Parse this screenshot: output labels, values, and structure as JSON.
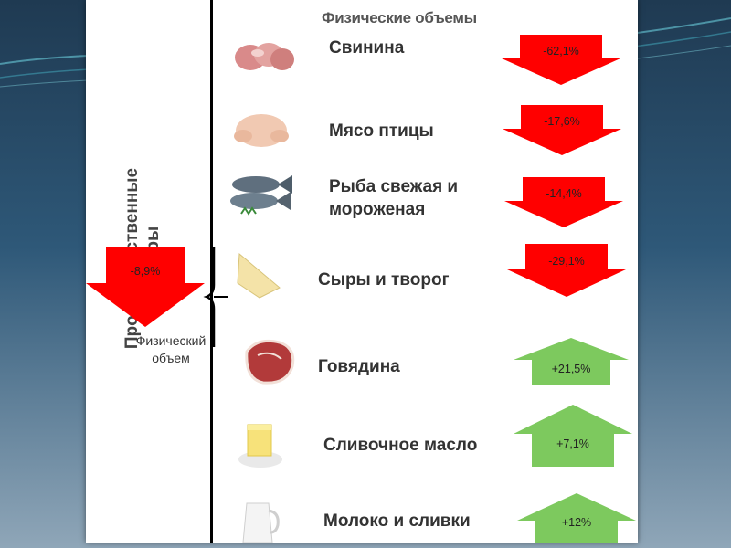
{
  "slide": {
    "header_title": "Физические объемы",
    "vertical_title_line1": "Продовольственные",
    "vertical_title_line2": "товары",
    "overall": {
      "change": "-8,9%",
      "label_line1": "Физический",
      "label_line2": "объем",
      "color": "#ff0000"
    }
  },
  "items": [
    {
      "name_line1": "Свинина",
      "name_line2": "",
      "change": "-62,1%",
      "direction": "down",
      "icon": "pork-meat-icon"
    },
    {
      "name_line1": "Мясо птицы",
      "name_line2": "",
      "change": "-17,6%",
      "direction": "down",
      "icon": "chicken-icon"
    },
    {
      "name_line1": "Рыба свежая и",
      "name_line2": "мороженая",
      "change": "-14,4%",
      "direction": "down",
      "icon": "fish-icon"
    },
    {
      "name_line1": "Сыры и творог",
      "name_line2": "",
      "change": "-29,1%",
      "direction": "down",
      "icon": "cheese-icon"
    },
    {
      "name_line1": "Говядина",
      "name_line2": "",
      "change": "+21,5%",
      "direction": "up",
      "icon": "beef-icon"
    },
    {
      "name_line1": "Сливочное масло",
      "name_line2": "",
      "change": "+7,1%",
      "direction": "up",
      "icon": "butter-icon"
    },
    {
      "name_line1": "Молоко и сливки",
      "name_line2": "",
      "change": "+12%",
      "direction": "up",
      "icon": "milk-icon"
    }
  ],
  "colors": {
    "down": "#ff0000",
    "up": "#7dc95e",
    "background": "#ffffff"
  }
}
